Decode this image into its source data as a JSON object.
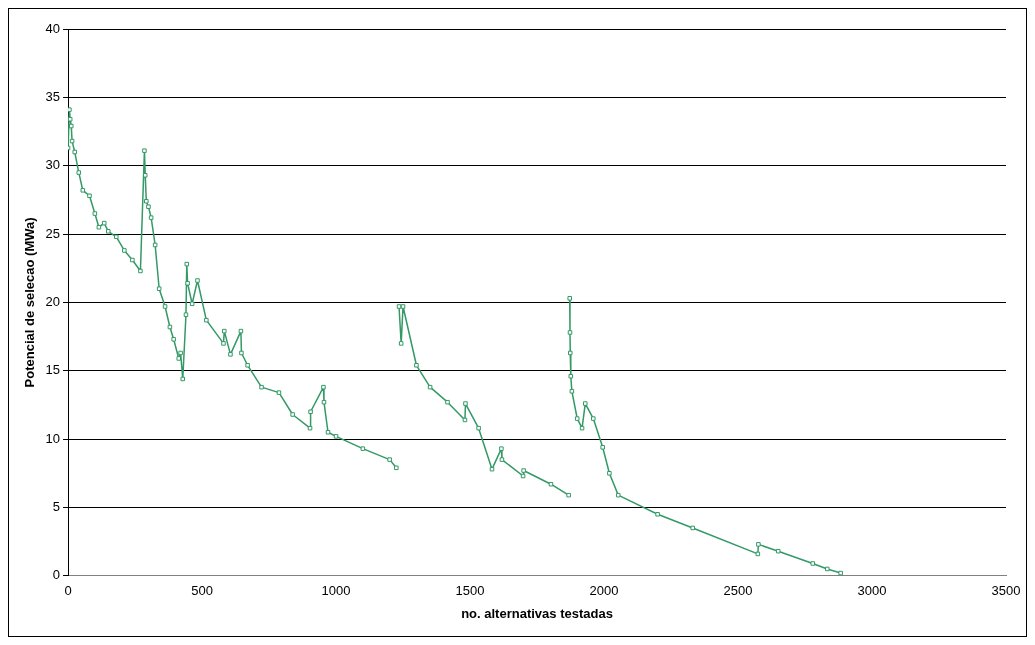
{
  "chart_data": {
    "type": "line",
    "xlabel": "no. alternativas testadas",
    "ylabel": "Potencial de selecao (MWa)",
    "xlim": [
      0,
      3500
    ],
    "xticks": [
      0,
      500,
      1000,
      1500,
      2000,
      2500,
      3000,
      3500
    ],
    "ylim": [
      0,
      40
    ],
    "yticks": [
      0,
      5,
      10,
      15,
      20,
      25,
      30,
      35,
      40
    ],
    "grid": "y",
    "legend": false,
    "marker": "square",
    "line_style": "solid",
    "series": [
      {
        "color": "#339966",
        "x": [
          0,
          5,
          8,
          12,
          15,
          25,
          40,
          55,
          80,
          100,
          115,
          135,
          150,
          180,
          210,
          240,
          270,
          285,
          288,
          292,
          300,
          310,
          325,
          340,
          362,
          380,
          394,
          413,
          420,
          428,
          440,
          443,
          446,
          463,
          483,
          516,
          580,
          583,
          606,
          645,
          647,
          670,
          722,
          787,
          838,
          903,
          905,
          953,
          955,
          970,
          1000,
          1100,
          1200,
          1225,
          null,
          1235,
          1243,
          1250,
          1300,
          1351,
          1416,
          1481,
          1483,
          1532,
          1582,
          1617,
          1619,
          1698,
          1700,
          1802,
          1868,
          null,
          1872,
          1873,
          1874,
          1876,
          1880,
          1900,
          1918,
          1930,
          1960,
          1995,
          2020,
          2053,
          2200,
          2331,
          2574,
          2576,
          2650,
          2779,
          2833,
          2883
        ],
        "values": [
          31.3,
          34.1,
          33.4,
          32.9,
          31.8,
          31,
          29.5,
          28.2,
          27.8,
          26.5,
          25.5,
          25.8,
          25.2,
          24.8,
          23.8,
          23.1,
          22.3,
          31.1,
          29.3,
          27.4,
          27,
          26.2,
          24.2,
          21,
          19.7,
          18.2,
          17.3,
          15.9,
          16.3,
          14.4,
          19.1,
          22.8,
          21.4,
          19.9,
          21.6,
          18.7,
          17,
          17.9,
          16.2,
          17.9,
          16.3,
          15.4,
          13.8,
          13.4,
          11.8,
          10.8,
          12,
          13.8,
          12.7,
          10.5,
          10.2,
          9.3,
          8.5,
          7.9,
          null,
          19.7,
          17,
          19.7,
          15.4,
          13.8,
          12.7,
          11.4,
          12.6,
          10.8,
          7.8,
          9.3,
          8.5,
          7.3,
          7.7,
          6.7,
          5.9,
          null,
          20.3,
          17.8,
          16.3,
          14.6,
          13.5,
          11.5,
          10.8,
          12.6,
          11.5,
          9.4,
          7.5,
          5.9,
          4.5,
          3.5,
          1.6,
          2.3,
          1.8,
          0.9,
          0.5,
          0.2
        ]
      }
    ]
  }
}
